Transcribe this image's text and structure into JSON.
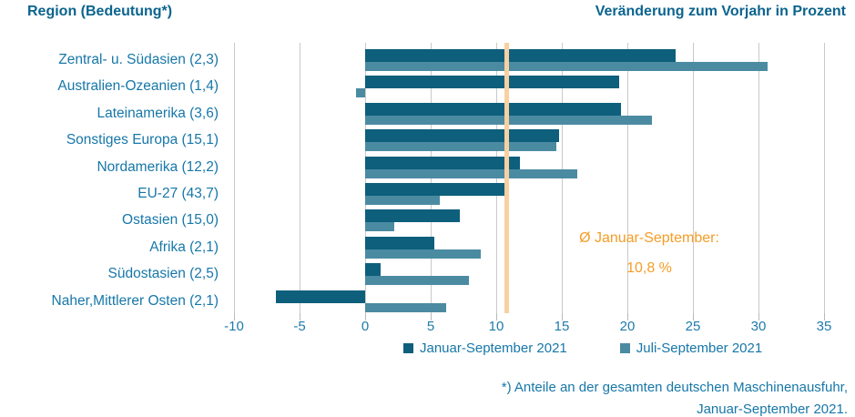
{
  "header": {
    "left_title": "Region (Bedeutung*)",
    "right_title": "Veränderung zum Vorjahr in Prozent"
  },
  "chart_data": {
    "type": "bar",
    "orientation": "horizontal",
    "title": "Veränderung zum Vorjahr in Prozent",
    "categories": [
      "Zentral- u. Südasien (2,3)",
      "Australien-Ozeanien (1,4)",
      "Lateinamerika (3,6)",
      "Sonstiges Europa (15,1)",
      "Nordamerika (12,2)",
      "EU-27 (43,7)",
      "Ostasien (15,0)",
      "Afrika (2,1)",
      "Südostasien (2,5)",
      "Naher,Mittlerer Osten (2,1)"
    ],
    "series": [
      {
        "name": "Januar-September 2021",
        "color": "#0d5f7c",
        "values": [
          23.7,
          19.4,
          19.5,
          14.8,
          11.8,
          10.7,
          7.2,
          5.3,
          1.2,
          -6.8
        ]
      },
      {
        "name": "Juli-September 2021",
        "color": "#4b8ba2",
        "values": [
          30.7,
          -0.7,
          21.9,
          14.6,
          16.2,
          5.7,
          2.2,
          8.8,
          7.9,
          6.2
        ]
      }
    ],
    "xlim": [
      -10,
      35
    ],
    "xticks": [
      "-10",
      "-5",
      "0",
      "5",
      "10",
      "15",
      "20",
      "25",
      "30",
      "35"
    ],
    "grid": true,
    "legend_position": "bottom",
    "reference_line": {
      "value": 10.8,
      "color": "#f9d0a2",
      "label_line1": "Ø Januar-September:",
      "label_line2": "10,8 %",
      "label_color": "#f59d26"
    }
  },
  "footnote": {
    "line1": "*) Anteile an der gesamten deutschen Maschinenausfuhr,",
    "line2": "Januar-September 2021."
  },
  "colors": {
    "header_text": "#0b648e",
    "label_text": "#1777a8",
    "gridline": "#c9c9c9"
  }
}
